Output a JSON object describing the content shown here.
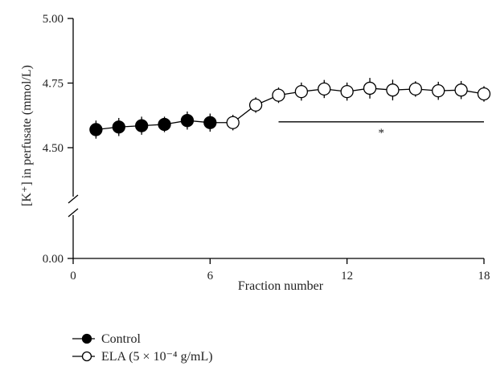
{
  "chart_data": {
    "type": "scatter",
    "title": "",
    "xlabel": "Fraction number",
    "ylabel": "[K⁺] in perfusate (mmol/L)",
    "xlim": [
      0,
      18
    ],
    "xticks": [
      0,
      6,
      12,
      18
    ],
    "yticks": [
      {
        "value": 0.0,
        "label": "0.00"
      },
      {
        "value": 4.5,
        "label": "4.50"
      },
      {
        "value": 4.75,
        "label": "4.75"
      },
      {
        "value": 5.0,
        "label": "5.00"
      }
    ],
    "y_axis_break": {
      "between": [
        0.0,
        4.5
      ]
    },
    "upper_ylim": [
      4.45,
      5.0
    ],
    "series": [
      {
        "name": "Control",
        "marker": "filled-circle",
        "color": "#000000",
        "x": [
          1,
          2,
          3,
          4,
          5,
          6
        ],
        "y": [
          4.57,
          4.58,
          4.585,
          4.59,
          4.605,
          4.597
        ],
        "error": [
          0.035,
          0.035,
          0.035,
          0.03,
          0.035,
          0.035
        ]
      },
      {
        "name": "ELA (5 × 10⁻⁴ g/mL)",
        "marker": "open-circle",
        "color": "#000000",
        "x": [
          7,
          8,
          9,
          10,
          11,
          12,
          13,
          14,
          15,
          16,
          17,
          18
        ],
        "y": [
          4.597,
          4.665,
          4.703,
          4.717,
          4.727,
          4.717,
          4.73,
          4.723,
          4.727,
          4.72,
          4.723,
          4.708
        ],
        "error": [
          0.03,
          0.03,
          0.03,
          0.035,
          0.035,
          0.035,
          0.04,
          0.04,
          0.03,
          0.035,
          0.035,
          0.03
        ]
      }
    ],
    "annotations": [
      {
        "type": "significance-bar",
        "x_from": 9,
        "x_to": 18,
        "y": 4.6,
        "label": "*"
      }
    ],
    "legend": {
      "placement": "bottom-left",
      "entries": [
        {
          "label": "Control",
          "marker": "filled-circle"
        },
        {
          "label": "ELA (5 × 10⁻⁴ g/mL)",
          "marker": "open-circle"
        }
      ]
    },
    "grid": false
  }
}
